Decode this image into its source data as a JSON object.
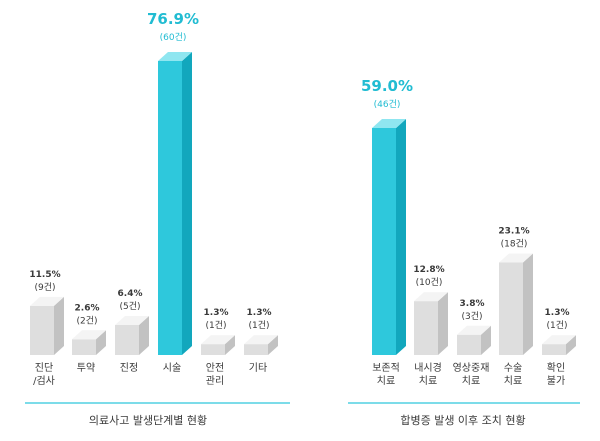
{
  "colors": {
    "highlight_front": "#2ec8dc",
    "highlight_side": "#12a7bd",
    "highlight_top": "#8fe6f0",
    "gray_front": "#dedede",
    "gray_side": "#c2c2c2",
    "gray_top": "#f4f4f4",
    "highlight_text": "#21bcd2",
    "text": "#3a3a3a",
    "baseline": "#2ec8dc"
  },
  "chart_data": [
    {
      "type": "bar",
      "title": "의료사고 발생단계별 현황",
      "categories": [
        [
          "진단",
          "/검사"
        ],
        [
          "투약"
        ],
        [
          "진정"
        ],
        [
          "시술"
        ],
        [
          "안전",
          "관리"
        ],
        [
          "기타"
        ]
      ],
      "values": [
        11.5,
        2.6,
        6.4,
        76.9,
        1.3,
        1.3
      ],
      "value_labels": [
        "11.5%",
        "2.6%",
        "6.4%",
        "76.9%",
        "1.3%",
        "1.3%"
      ],
      "count_labels": [
        "(9건)",
        "(2건)",
        "(5건)",
        "(60건)",
        "(1건)",
        "(1건)"
      ],
      "highlight_index": 3,
      "ylim": [
        0,
        80
      ]
    },
    {
      "type": "bar",
      "title": "합병증 발생 이후 조치 현황",
      "categories": [
        [
          "보존적",
          "치료"
        ],
        [
          "내시경",
          "치료"
        ],
        [
          "영상중재",
          "치료"
        ],
        [
          "수술",
          "치료"
        ],
        [
          "확인",
          "불가"
        ]
      ],
      "values": [
        59.0,
        12.8,
        3.8,
        23.1,
        1.3
      ],
      "value_labels": [
        "59.0%",
        "12.8%",
        "3.8%",
        "23.1%",
        "1.3%"
      ],
      "count_labels": [
        "(46건)",
        "(10건)",
        "(3건)",
        "(18건)",
        "(1건)"
      ],
      "highlight_index": 0,
      "ylim": [
        0,
        80
      ]
    }
  ]
}
